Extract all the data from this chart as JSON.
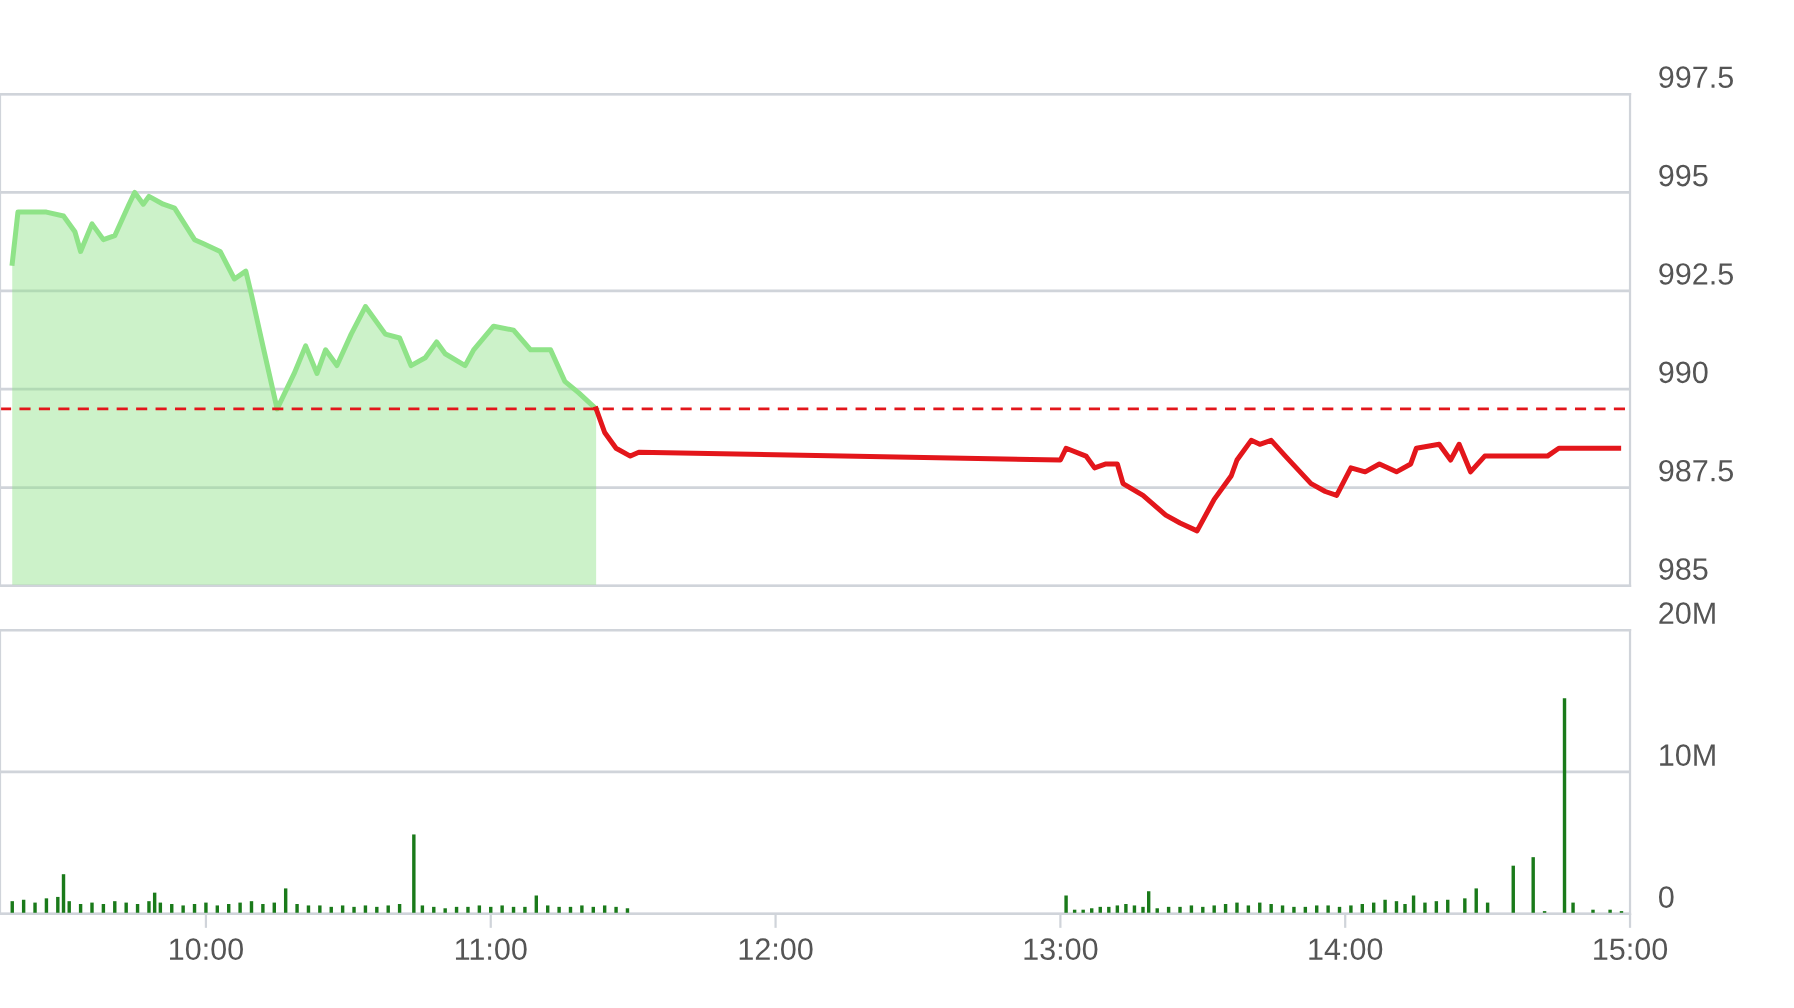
{
  "chart_data": [
    {
      "type": "area",
      "xlim": [
        9.277,
        15.0
      ],
      "ylim": [
        985,
        997.5
      ],
      "yticks": [
        985,
        987.5,
        990,
        992.5,
        995,
        997.5
      ],
      "grid": "y",
      "tick_labels": "y",
      "line_style": "solid",
      "ref_lines": [
        {
          "axis": "y",
          "value": 989.5,
          "color": "#e3161b",
          "line_style": "dashed"
        }
      ],
      "series": [
        {
          "type": "area",
          "color": "#8fe388",
          "x": [
            9.32,
            9.34,
            9.37,
            9.44,
            9.5,
            9.54,
            9.56,
            9.6,
            9.64,
            9.68,
            9.73,
            9.75,
            9.78,
            9.8,
            9.85,
            9.89,
            9.96,
            9.99,
            10.05,
            10.1,
            10.14,
            10.16,
            10.2,
            10.25,
            10.31,
            10.35,
            10.39,
            10.42,
            10.46,
            10.51,
            10.56,
            10.63,
            10.68,
            10.72,
            10.77,
            10.81,
            10.84,
            10.91,
            10.94,
            11.01,
            11.08,
            11.14,
            11.21,
            11.26,
            11.31,
            11.37
          ],
          "values": [
            993.2,
            994.5,
            994.5,
            994.5,
            994.4,
            994.0,
            993.5,
            994.2,
            993.8,
            993.9,
            994.7,
            995.0,
            994.7,
            994.9,
            994.7,
            994.6,
            993.8,
            993.7,
            993.5,
            992.8,
            993.0,
            992.4,
            991.1,
            989.5,
            990.4,
            991.1,
            990.4,
            991.0,
            990.6,
            991.4,
            992.1,
            991.4,
            991.3,
            990.6,
            990.8,
            991.2,
            990.9,
            990.6,
            991.0,
            991.6,
            991.5,
            991.0,
            991.0,
            990.2,
            989.9,
            989.5
          ]
        },
        {
          "type": "line",
          "color": "#e3161b",
          "x": [
            11.37,
            11.4,
            11.44,
            11.49,
            11.52,
            13.0,
            13.02,
            13.09,
            13.12,
            13.16,
            13.2,
            13.22,
            13.29,
            13.37,
            13.42,
            13.48,
            13.54,
            13.6,
            13.62,
            13.67,
            13.7,
            13.74,
            13.79,
            13.88,
            13.93,
            13.97,
            14.02,
            14.07,
            14.12,
            14.18,
            14.23,
            14.25,
            14.33,
            14.37,
            14.4,
            14.44,
            14.49,
            14.71,
            14.75,
            14.96
          ],
          "values": [
            989.5,
            988.9,
            988.5,
            988.3,
            988.4,
            988.2,
            988.5,
            988.3,
            988.0,
            988.1,
            988.1,
            987.6,
            987.3,
            986.8,
            986.6,
            986.4,
            987.2,
            987.8,
            988.2,
            988.7,
            988.6,
            988.7,
            988.3,
            987.6,
            987.4,
            987.3,
            988.0,
            987.9,
            988.1,
            987.9,
            988.1,
            988.5,
            988.6,
            988.2,
            988.6,
            987.9,
            988.3,
            988.3,
            988.5,
            988.5
          ]
        }
      ]
    },
    {
      "type": "bar",
      "xlim": [
        9.277,
        15.0
      ],
      "ylim": [
        0,
        20
      ],
      "yticks": [
        {
          "value": 0,
          "label": "0"
        },
        {
          "value": 10,
          "label": "10M"
        },
        {
          "value": 20,
          "label": "20M"
        }
      ],
      "xticks": [
        {
          "value": 10,
          "label": "10:00"
        },
        {
          "value": 11,
          "label": "11:00"
        },
        {
          "value": 12,
          "label": "12:00"
        },
        {
          "value": 13,
          "label": "13:00"
        },
        {
          "value": 14,
          "label": "14:00"
        },
        {
          "value": 15,
          "label": "15:00"
        }
      ],
      "grid": "y",
      "series": [
        {
          "color": "#1a7a1a",
          "x": [
            9.32,
            9.36,
            9.4,
            9.44,
            9.48,
            9.5,
            9.52,
            9.56,
            9.6,
            9.64,
            9.68,
            9.72,
            9.76,
            9.8,
            9.82,
            9.84,
            9.88,
            9.92,
            9.96,
            10.0,
            10.04,
            10.08,
            10.12,
            10.16,
            10.2,
            10.24,
            10.28,
            10.32,
            10.36,
            10.4,
            10.44,
            10.48,
            10.52,
            10.56,
            10.6,
            10.64,
            10.68,
            10.73,
            10.76,
            10.8,
            10.84,
            10.88,
            10.92,
            10.96,
            11.0,
            11.04,
            11.08,
            11.12,
            11.16,
            11.2,
            11.24,
            11.28,
            11.32,
            11.36,
            11.4,
            11.44,
            11.48,
            13.02,
            13.05,
            13.08,
            13.11,
            13.14,
            13.17,
            13.2,
            13.23,
            13.26,
            13.29,
            13.31,
            13.34,
            13.38,
            13.42,
            13.46,
            13.5,
            13.54,
            13.58,
            13.62,
            13.66,
            13.7,
            13.74,
            13.78,
            13.82,
            13.86,
            13.9,
            13.94,
            13.98,
            14.02,
            14.06,
            14.1,
            14.14,
            14.18,
            14.21,
            14.24,
            14.28,
            14.32,
            14.36,
            14.42,
            14.46,
            14.5,
            14.59,
            14.66,
            14.7,
            14.77,
            14.8,
            14.87,
            14.93,
            14.97
          ],
          "values": [
            0.9,
            1.0,
            0.8,
            1.1,
            1.2,
            2.8,
            0.9,
            0.7,
            0.8,
            0.7,
            0.9,
            0.8,
            0.7,
            0.9,
            1.5,
            0.8,
            0.7,
            0.6,
            0.7,
            0.8,
            0.6,
            0.7,
            0.8,
            0.9,
            0.7,
            0.8,
            1.8,
            0.7,
            0.6,
            0.6,
            0.5,
            0.6,
            0.5,
            0.6,
            0.5,
            0.6,
            0.7,
            5.6,
            0.6,
            0.5,
            0.4,
            0.5,
            0.5,
            0.6,
            0.5,
            0.6,
            0.5,
            0.5,
            1.3,
            0.6,
            0.5,
            0.5,
            0.6,
            0.5,
            0.6,
            0.5,
            0.4,
            1.3,
            0.3,
            0.3,
            0.4,
            0.5,
            0.5,
            0.6,
            0.7,
            0.6,
            0.5,
            1.6,
            0.4,
            0.5,
            0.5,
            0.6,
            0.5,
            0.6,
            0.7,
            0.8,
            0.6,
            0.8,
            0.7,
            0.6,
            0.5,
            0.5,
            0.6,
            0.6,
            0.5,
            0.6,
            0.7,
            0.8,
            1.0,
            0.9,
            0.7,
            1.3,
            0.8,
            0.9,
            1.0,
            1.1,
            1.8,
            0.8,
            3.4,
            4.0,
            0.2,
            15.2,
            0.8,
            0.3,
            0.3,
            0.2
          ]
        }
      ]
    }
  ]
}
